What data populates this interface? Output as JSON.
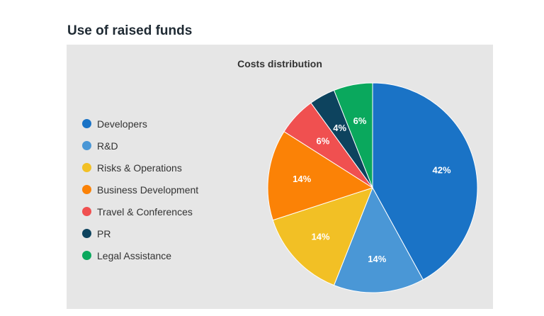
{
  "heading": "Use of raised funds",
  "chart_data": {
    "type": "pie",
    "title": "Costs distribution",
    "legend_position": "left",
    "slices": [
      {
        "name": "Developers",
        "value": 42,
        "label": "42%",
        "color": "#1a73c6"
      },
      {
        "name": "R&D",
        "value": 14,
        "label": "14%",
        "color": "#4a97d6"
      },
      {
        "name": "Risks & Operations",
        "value": 14,
        "label": "14%",
        "color": "#f2c025"
      },
      {
        "name": "Business Development",
        "value": 14,
        "label": "14%",
        "color": "#fb8206"
      },
      {
        "name": "Travel & Conferences",
        "value": 6,
        "label": "6%",
        "color": "#f05050"
      },
      {
        "name": "PR",
        "value": 4,
        "label": "4%",
        "color": "#0d435e"
      },
      {
        "name": "Legal Assistance",
        "value": 6,
        "label": "6%",
        "color": "#0aa85d"
      }
    ]
  }
}
